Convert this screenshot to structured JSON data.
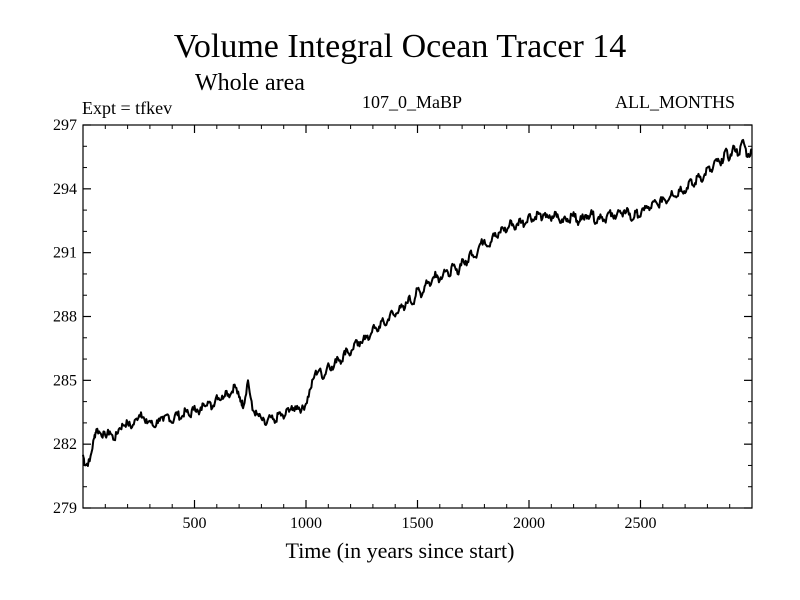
{
  "chart_data": {
    "type": "line",
    "title": "Volume Integral Ocean Tracer 14",
    "subtitle": "Whole area",
    "annotations": {
      "expt": "Expt = tfkev",
      "run": "107_0_MaBP",
      "months": "ALL_MONTHS"
    },
    "xlabel": "Time (in years since start)",
    "ylabel": "",
    "xlim": [
      0,
      3000
    ],
    "ylim": [
      279,
      297
    ],
    "xticks": [
      500,
      1000,
      1500,
      2000,
      2500
    ],
    "xtick_labels": [
      "500",
      "1000",
      "1500",
      "2000",
      "2500"
    ],
    "yticks": [
      279,
      282,
      285,
      288,
      291,
      294,
      297
    ],
    "ytick_labels": [
      "279",
      "282",
      "285",
      "288",
      "291",
      "294",
      "297"
    ],
    "grid": false,
    "line_color": "#000000",
    "series": [
      {
        "x": [
          0,
          10,
          30,
          50,
          60,
          80,
          100,
          120,
          140,
          160,
          180,
          200,
          220,
          240,
          260,
          280,
          300,
          320,
          340,
          360,
          380,
          400,
          420,
          440,
          460,
          480,
          500,
          520,
          540,
          560,
          580,
          600,
          620,
          640,
          660,
          680,
          700,
          710,
          720,
          740,
          760,
          780,
          800,
          820,
          840,
          860,
          880,
          900,
          920,
          940,
          960,
          980,
          1000,
          1020,
          1040,
          1060,
          1080,
          1100,
          1120,
          1140,
          1160,
          1180,
          1200,
          1220,
          1240,
          1260,
          1280,
          1300,
          1320,
          1340,
          1360,
          1380,
          1400,
          1420,
          1440,
          1460,
          1480,
          1500,
          1520,
          1540,
          1560,
          1580,
          1600,
          1620,
          1640,
          1660,
          1680,
          1700,
          1720,
          1740,
          1760,
          1780,
          1800,
          1820,
          1840,
          1860,
          1880,
          1900,
          1920,
          1940,
          1960,
          1980,
          2000,
          2020,
          2040,
          2060,
          2080,
          2100,
          2120,
          2140,
          2160,
          2180,
          2200,
          2220,
          2240,
          2260,
          2280,
          2300,
          2320,
          2340,
          2360,
          2380,
          2400,
          2420,
          2440,
          2460,
          2480,
          2500,
          2520,
          2540,
          2560,
          2580,
          2600,
          2620,
          2640,
          2660,
          2680,
          2700,
          2720,
          2740,
          2760,
          2780,
          2800,
          2820,
          2840,
          2860,
          2880,
          2900,
          2920,
          2940,
          2960,
          2980,
          3000
        ],
        "y": [
          281.5,
          281.0,
          281.2,
          282.3,
          282.7,
          282.5,
          282.4,
          282.6,
          282.2,
          282.7,
          282.9,
          283.0,
          282.8,
          283.2,
          283.5,
          283.0,
          283.1,
          282.8,
          283.2,
          283.1,
          283.4,
          283.0,
          283.5,
          283.2,
          283.6,
          283.3,
          283.8,
          283.4,
          283.9,
          284.0,
          283.7,
          284.3,
          284.1,
          284.5,
          284.3,
          284.8,
          284.2,
          284.0,
          283.8,
          285.0,
          283.6,
          283.4,
          283.2,
          282.9,
          283.3,
          283.0,
          283.5,
          283.2,
          283.7,
          283.6,
          283.8,
          283.6,
          283.9,
          284.6,
          285.3,
          285.5,
          285.1,
          285.8,
          285.5,
          286.1,
          285.9,
          286.5,
          286.2,
          286.8,
          286.6,
          287.1,
          286.9,
          287.5,
          287.3,
          287.8,
          287.6,
          288.2,
          288.0,
          288.5,
          288.3,
          288.9,
          288.6,
          289.3,
          289.0,
          289.7,
          289.5,
          290.1,
          289.7,
          290.2,
          289.9,
          290.4,
          290.0,
          290.7,
          290.4,
          291.1,
          290.8,
          291.4,
          291.6,
          291.3,
          291.9,
          291.7,
          292.2,
          292.0,
          292.5,
          292.1,
          292.6,
          292.3,
          292.8,
          292.5,
          292.9,
          292.6,
          292.8,
          292.5,
          292.9,
          292.4,
          292.7,
          292.5,
          292.9,
          292.3,
          292.8,
          292.6,
          293.0,
          292.4,
          292.8,
          292.5,
          292.9,
          292.6,
          293.0,
          292.7,
          293.1,
          292.5,
          292.9,
          292.7,
          293.2,
          293.0,
          293.4,
          293.2,
          293.6,
          293.4,
          293.9,
          293.6,
          294.1,
          293.8,
          294.4,
          294.1,
          294.7,
          294.4,
          295.0,
          294.8,
          295.4,
          295.1,
          295.8,
          295.4,
          296.0,
          295.6,
          296.3,
          295.5,
          295.8
        ]
      }
    ]
  }
}
